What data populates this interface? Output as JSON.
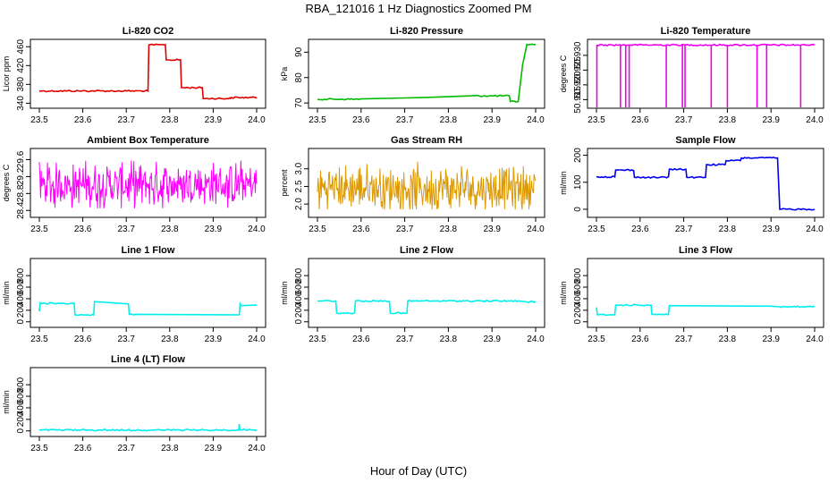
{
  "title": "RBA_121016  1 Hz Diagnostics Zoomed PM",
  "xlabel": "Hour of Day (UTC)",
  "chart_data": [
    {
      "type": "line",
      "title": "Li-820 CO2",
      "ylabel": "Licor ppm",
      "color": "#e00000",
      "xlim": [
        23.5,
        24.0
      ],
      "xticks": [
        23.5,
        23.6,
        23.7,
        23.8,
        23.9,
        24.0
      ],
      "xtick_labels": [
        "23.5",
        "23.6",
        "23.7",
        "23.8",
        "23.9",
        "24.0"
      ],
      "ylim": [
        335,
        470
      ],
      "yticks": [
        340,
        380,
        420,
        460
      ],
      "ytick_labels": [
        "340",
        "380",
        "420",
        "460"
      ],
      "series": [
        {
          "name": "CO2",
          "x": [
            23.5,
            23.75,
            23.752,
            23.79,
            23.792,
            23.825,
            23.827,
            23.875,
            23.877,
            23.94,
            23.942,
            24.0
          ],
          "y": [
            366,
            366,
            464,
            464,
            432,
            432,
            373,
            373,
            350,
            350,
            352,
            352
          ]
        }
      ]
    },
    {
      "type": "line",
      "title": "Li-820 Pressure",
      "ylabel": "kPa",
      "color": "#00bb00",
      "xlim": [
        23.5,
        24.0
      ],
      "xticks": [
        23.5,
        23.6,
        23.7,
        23.8,
        23.9,
        24.0
      ],
      "xtick_labels": [
        "23.5",
        "23.6",
        "23.7",
        "23.8",
        "23.9",
        "24.0"
      ],
      "ylim": [
        69,
        94
      ],
      "yticks": [
        70,
        80,
        90
      ],
      "ytick_labels": [
        "70",
        "80",
        "90"
      ],
      "series": [
        {
          "name": "Pressure",
          "x": [
            23.5,
            23.6,
            23.7,
            23.75,
            23.85,
            23.94,
            23.942,
            23.96,
            23.97,
            23.98,
            24.0
          ],
          "y": [
            71.5,
            71.6,
            72.0,
            72.2,
            72.8,
            72.8,
            70.6,
            70.6,
            85,
            93,
            93
          ]
        }
      ]
    },
    {
      "type": "line",
      "title": "Li-820 Temperature",
      "ylabel": "degrees C",
      "color": "#ee00ee",
      "xlim": [
        23.5,
        24.0
      ],
      "xticks": [
        23.5,
        23.6,
        23.7,
        23.8,
        23.9,
        24.0
      ],
      "xtick_labels": [
        "23.5",
        "23.6",
        "23.7",
        "23.8",
        "23.9",
        "24.0"
      ],
      "ylim": [
        50.913,
        50.9345
      ],
      "yticks": [
        50.915,
        50.92,
        50.925,
        50.93
      ],
      "ytick_labels": [
        "50.915",
        "50.920",
        "50.925",
        "50.930"
      ],
      "series": [
        {
          "name": "Temperature",
          "x": [
            23.5,
            24.0
          ],
          "y": [
            50.9335,
            50.9335
          ]
        }
      ],
      "dropouts": [
        23.501,
        23.555,
        23.567,
        23.575,
        23.66,
        23.697,
        23.703,
        23.763,
        23.8,
        23.868,
        23.89,
        23.968
      ]
    },
    {
      "type": "line",
      "title": "Ambient Box Temperature",
      "ylabel": "degrees C",
      "color": "#ff00ff",
      "xlim": [
        23.5,
        24.0
      ],
      "xticks": [
        23.5,
        23.6,
        23.7,
        23.8,
        23.9,
        24.0
      ],
      "xtick_labels": [
        "23.5",
        "23.6",
        "23.7",
        "23.8",
        "23.9",
        "24.0"
      ],
      "ylim": [
        28.3,
        29.8
      ],
      "yticks": [
        28.4,
        28.8,
        29.2,
        29.6
      ],
      "ytick_labels": [
        "28.4",
        "28.8",
        "29.2",
        "29.6"
      ],
      "series": [
        {
          "name": "Ambient",
          "mean": 29.0,
          "range": [
            28.45,
            29.72
          ]
        }
      ]
    },
    {
      "type": "line",
      "title": "Gas Stream RH",
      "ylabel": "percent",
      "color": "#dd9900",
      "xlim": [
        23.5,
        24.0
      ],
      "xticks": [
        23.5,
        23.6,
        23.7,
        23.8,
        23.9,
        24.0
      ],
      "xtick_labels": [
        "23.5",
        "23.6",
        "23.7",
        "23.8",
        "23.9",
        "24.0"
      ],
      "ylim": [
        1.7,
        3.5
      ],
      "yticks": [
        2.0,
        2.5,
        3.0
      ],
      "ytick_labels": [
        "2.0",
        "2.5",
        "3.0"
      ],
      "series": [
        {
          "name": "RH",
          "mean": 2.45,
          "range": [
            1.85,
            3.4
          ]
        }
      ]
    },
    {
      "type": "line",
      "title": "Sample Flow",
      "ylabel": "ml/min",
      "color": "#0000ee",
      "xlim": [
        23.5,
        24.0
      ],
      "xticks": [
        23.5,
        23.6,
        23.7,
        23.8,
        23.9,
        24.0
      ],
      "xtick_labels": [
        "23.5",
        "23.6",
        "23.7",
        "23.8",
        "23.9",
        "24.0"
      ],
      "ylim": [
        -20,
        215
      ],
      "yticks": [
        0,
        100,
        200
      ],
      "ytick_labels": [
        "0",
        "100",
        "200"
      ],
      "series": [
        {
          "name": "Sample",
          "x": [
            23.5,
            23.542,
            23.544,
            23.585,
            23.587,
            23.665,
            23.667,
            23.705,
            23.707,
            23.75,
            23.752,
            23.795,
            23.797,
            23.83,
            23.832,
            23.915,
            23.92,
            24.0
          ],
          "y": [
            120,
            120,
            145,
            145,
            118,
            118,
            148,
            148,
            118,
            118,
            165,
            165,
            180,
            180,
            190,
            190,
            0,
            0
          ]
        }
      ]
    },
    {
      "type": "line",
      "title": "Line 1 Flow",
      "ylabel": "ml/min",
      "color": "#00eeee",
      "xlim": [
        23.5,
        24.0
      ],
      "xticks": [
        23.5,
        23.6,
        23.7,
        23.8,
        23.9,
        24.0
      ],
      "xtick_labels": [
        "23.5",
        "23.6",
        "23.7",
        "23.8",
        "23.9",
        "24.0"
      ],
      "ylim": [
        -50,
        1050
      ],
      "yticks": [
        0,
        200,
        400,
        600,
        800
      ],
      "ytick_labels": [
        "0",
        "200",
        "400",
        "600",
        "800"
      ],
      "series": [
        {
          "name": "Line1",
          "x": [
            23.5,
            23.502,
            23.504,
            23.58,
            23.582,
            23.625,
            23.627,
            23.705,
            23.707,
            23.72,
            23.96,
            23.962,
            23.964,
            24.0
          ],
          "y": [
            180,
            330,
            320,
            320,
            120,
            120,
            350,
            310,
            130,
            130,
            120,
            310,
            280,
            290
          ]
        }
      ]
    },
    {
      "type": "line",
      "title": "Line 2 Flow",
      "ylabel": "ml/min",
      "color": "#00eeee",
      "xlim": [
        23.5,
        24.0
      ],
      "xticks": [
        23.5,
        23.6,
        23.7,
        23.8,
        23.9,
        24.0
      ],
      "xtick_labels": [
        "23.5",
        "23.6",
        "23.7",
        "23.8",
        "23.9",
        "24.0"
      ],
      "ylim": [
        -50,
        1050
      ],
      "yticks": [
        0,
        200,
        400,
        600,
        800
      ],
      "ytick_labels": [
        "0",
        "200",
        "400",
        "600",
        "800"
      ],
      "series": [
        {
          "name": "Line2",
          "x": [
            23.5,
            23.542,
            23.544,
            23.585,
            23.587,
            23.665,
            23.667,
            23.705,
            23.707,
            23.96,
            23.98,
            24.0
          ],
          "y": [
            360,
            360,
            150,
            150,
            360,
            360,
            150,
            150,
            360,
            360,
            345,
            350
          ]
        }
      ]
    },
    {
      "type": "line",
      "title": "Line 3 Flow",
      "ylabel": "ml/min",
      "color": "#00eeee",
      "xlim": [
        23.5,
        24.0
      ],
      "xticks": [
        23.5,
        23.6,
        23.7,
        23.8,
        23.9,
        24.0
      ],
      "xtick_labels": [
        "23.5",
        "23.6",
        "23.7",
        "23.8",
        "23.9",
        "24.0"
      ],
      "ylim": [
        -50,
        1050
      ],
      "yticks": [
        0,
        200,
        400,
        600,
        800
      ],
      "ytick_labels": [
        "0",
        "200",
        "400",
        "600",
        "800"
      ],
      "series": [
        {
          "name": "Line3",
          "x": [
            23.5,
            23.502,
            23.504,
            23.542,
            23.544,
            23.625,
            23.627,
            23.665,
            23.667,
            23.9,
            23.92,
            24.0
          ],
          "y": [
            250,
            120,
            120,
            120,
            290,
            290,
            130,
            130,
            280,
            270,
            260,
            260
          ]
        }
      ]
    },
    {
      "type": "line",
      "title": "Line 4 (LT) Flow",
      "ylabel": "ml/min",
      "color": "#00eeee",
      "xlim": [
        23.5,
        24.0
      ],
      "xticks": [
        23.5,
        23.6,
        23.7,
        23.8,
        23.9,
        24.0
      ],
      "xtick_labels": [
        "23.5",
        "23.6",
        "23.7",
        "23.8",
        "23.9",
        "24.0"
      ],
      "ylim": [
        -50,
        1050
      ],
      "yticks": [
        0,
        200,
        400,
        600,
        800
      ],
      "ytick_labels": [
        "0",
        "200",
        "400",
        "600",
        "800"
      ],
      "series": [
        {
          "name": "Line4",
          "x": [
            23.5,
            23.959,
            23.96,
            23.961,
            23.962,
            24.0
          ],
          "y": [
            15,
            15,
            120,
            40,
            20,
            15
          ]
        }
      ]
    }
  ]
}
